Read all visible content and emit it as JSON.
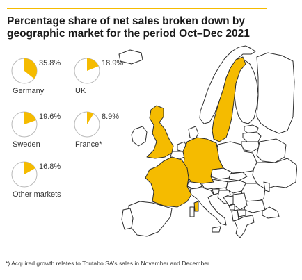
{
  "header": {
    "title_line1": "Percentage share of net sales broken down by",
    "title_line2": "geographic market for the period Oct–Dec 2021"
  },
  "colors": {
    "accent": "#f5bb00",
    "pie_outline": "#b9b9b9",
    "map_land": "#ffffff",
    "map_border": "#2c2c2c"
  },
  "chart_data": {
    "type": "pie",
    "title": "Percentage share of net sales broken down by geographic market for the period Oct–Dec 2021",
    "unit": "%",
    "slices": [
      {
        "name": "Germany",
        "value": 35.8,
        "label": "35.8%"
      },
      {
        "name": "UK",
        "value": 18.9,
        "label": "18.9%"
      },
      {
        "name": "Sweden",
        "value": 19.6,
        "label": "19.6%"
      },
      {
        "name": "France*",
        "value": 8.9,
        "label": "8.9%"
      },
      {
        "name": "Other markets",
        "value": 16.8,
        "label": "16.8%"
      }
    ],
    "highlighted_countries": [
      "Sweden",
      "UK",
      "Germany",
      "France"
    ]
  },
  "footnote": "*) Acquired growth relates to Toutabo SA's sales in November and December"
}
